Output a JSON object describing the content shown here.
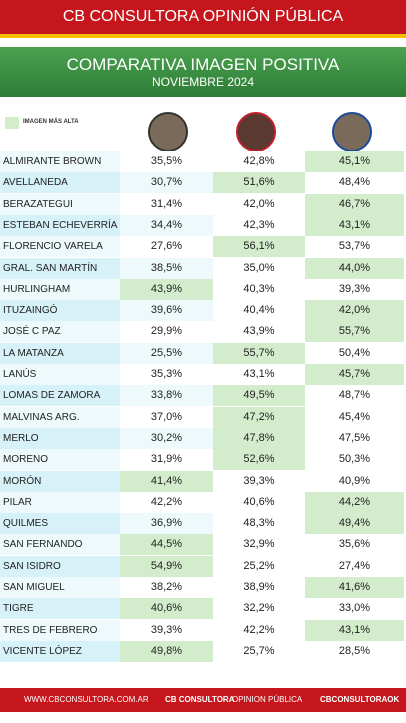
{
  "header": {
    "title": "CB CONSULTORA OPINIÓN PÚBLICA"
  },
  "banner": {
    "title": "COMPARATIVA IMAGEN POSITIVA",
    "subtitle": "NOVIEMBRE 2024"
  },
  "legend": {
    "label": "IMAGEN MÁS ALTA",
    "color": "#d3eccc"
  },
  "table": {
    "rows": [
      [
        "ALMIRANTE BROWN",
        "35,5%",
        "42,8%",
        "45,1%"
      ],
      [
        "AVELLANEDA",
        "30,7%",
        "51,6%",
        "48,4%"
      ],
      [
        "BERAZATEGUI",
        "31,4%",
        "42,0%",
        "46,7%"
      ],
      [
        "ESTEBAN ECHEVERRÍA",
        "34,4%",
        "42,3%",
        "43,1%"
      ],
      [
        "FLORENCIO VARELA",
        "27,6%",
        "56,1%",
        "53,7%"
      ],
      [
        "GRAL. SAN MARTÍN",
        "38,5%",
        "35,0%",
        "44,0%"
      ],
      [
        "HURLINGHAM",
        "43,9%",
        "40,3%",
        "39,3%"
      ],
      [
        "ITUZAINGÓ",
        "39,6%",
        "40,4%",
        "42,0%"
      ],
      [
        "JOSÉ C PAZ",
        "29,9%",
        "43,9%",
        "55,7%"
      ],
      [
        "LA MATANZA",
        "25,5%",
        "55,7%",
        "50,4%"
      ],
      [
        "LANÚS",
        "35,3%",
        "43,1%",
        "45,7%"
      ],
      [
        "LOMAS DE ZAMORA",
        "33,8%",
        "49,5%",
        "48,7%"
      ],
      [
        "MALVINAS ARG.",
        "37,0%",
        "47,2%",
        "45,4%"
      ],
      [
        "MERLO",
        "30,2%",
        "47,8%",
        "47,5%"
      ],
      [
        "MORENO",
        "31,9%",
        "52,6%",
        "50,3%"
      ],
      [
        "MORÓN",
        "41,4%",
        "39,3%",
        "40,9%"
      ],
      [
        "PILAR",
        "42,2%",
        "40,6%",
        "44,2%"
      ],
      [
        "QUILMES",
        "36,9%",
        "48,3%",
        "49,4%"
      ],
      [
        "SAN FERNANDO",
        "44,5%",
        "32,9%",
        "35,6%"
      ],
      [
        "SAN ISIDRO",
        "54,9%",
        "25,2%",
        "27,4%"
      ],
      [
        "SAN MIGUEL",
        "38,2%",
        "38,9%",
        "41,6%"
      ],
      [
        "TIGRE",
        "40,6%",
        "32,2%",
        "33,0%"
      ],
      [
        "TRES DE FEBRERO",
        "39,3%",
        "42,2%",
        "43,1%"
      ],
      [
        "VICENTE LÓPEZ",
        "49,8%",
        "25,7%",
        "28,5%"
      ]
    ]
  },
  "footer": {
    "website": "WWW.CBCONSULTORA.COM.AR",
    "brand": "CB CONSULTORA",
    "brand_sub": "OPINION PÚBLICA",
    "handle": "CBCONSULTORAOK"
  }
}
